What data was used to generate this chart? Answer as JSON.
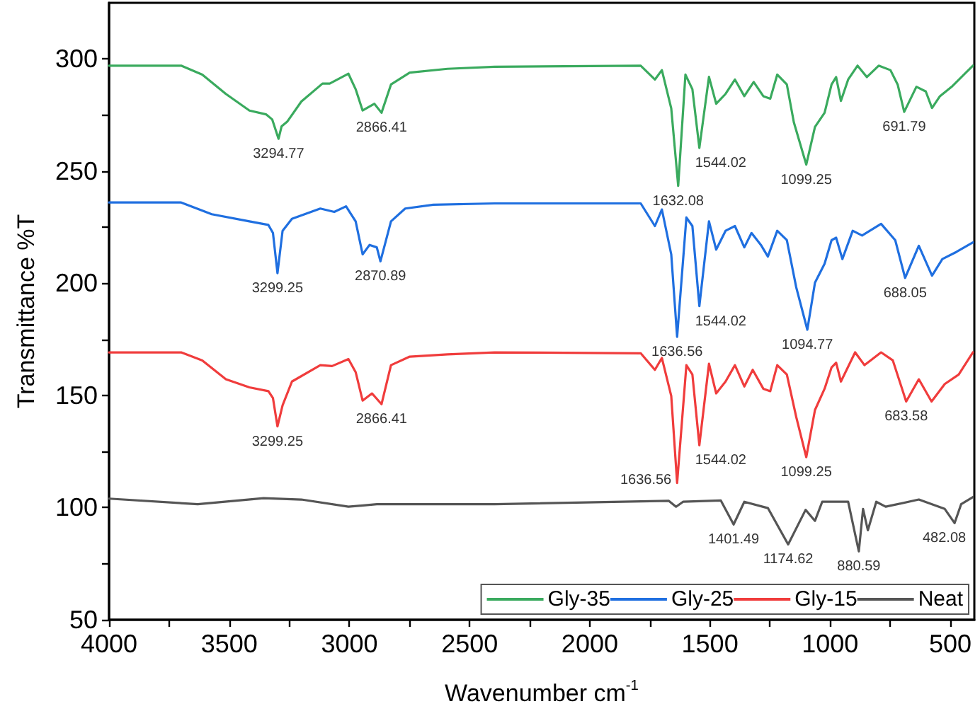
{
  "chart_data": {
    "type": "line",
    "xlabel": "Wavenumber cm$^{-1}$",
    "ylabel": "Transmittance %T",
    "xlim": [
      4000,
      400
    ],
    "ylim": [
      50,
      325
    ],
    "xticks": [
      4000,
      {
        "value": 3750,
        "label": null
      },
      3500,
      {
        "value": 3250,
        "label": null
      },
      3000,
      {
        "value": 2750,
        "label": null
      },
      2500,
      {
        "value": 2250,
        "label": null
      },
      2000,
      {
        "value": 1750,
        "label": null
      },
      1500,
      {
        "value": 1250,
        "label": null
      },
      1000,
      {
        "value": 750,
        "label": null
      },
      500
    ],
    "yticks": [
      50,
      {
        "value": 75,
        "label": null
      },
      100,
      {
        "value": 125,
        "label": null
      },
      150,
      {
        "value": 175,
        "label": null
      },
      200,
      {
        "value": 225,
        "label": null
      },
      250,
      {
        "value": 275,
        "label": null
      },
      300
    ],
    "grid": false,
    "legend": "bottom right",
    "marker": "none",
    "line_style": "solid",
    "series": [
      {
        "name": "Gly-35",
        "color": "#3aaa5e",
        "x": [
          4000,
          3700,
          3612,
          3514,
          3416,
          3347,
          3321,
          3294.77,
          3282,
          3259,
          3200,
          3112,
          3082,
          3004,
          2974,
          2945,
          2896,
          2866.41,
          2827,
          2749,
          2592,
          2396,
          1788,
          1729,
          1700,
          1661,
          1632.08,
          1602,
          1573,
          1544.02,
          1504,
          1474,
          1435,
          1396,
          1357,
          1318,
          1278,
          1249,
          1220,
          1180,
          1151,
          1099.25,
          1063,
          1023,
          994,
          975,
          955,
          925,
          886,
          847,
          798,
          749,
          719,
          691.79,
          641,
          602,
          576,
          543,
          494,
          435,
          406
        ],
        "values": [
          297,
          297,
          293,
          284.4,
          277,
          275.3,
          273,
          264.4,
          270,
          272,
          281,
          289,
          289,
          293.4,
          286.5,
          277,
          280,
          276,
          288.6,
          293.9,
          295.6,
          296.5,
          297,
          290.8,
          295,
          278,
          243.4,
          293,
          286.5,
          260.3,
          292,
          280,
          284.4,
          290.8,
          283.4,
          289.7,
          283.4,
          282.3,
          293,
          288.6,
          271.8,
          252.9,
          269.7,
          276,
          288.6,
          291.9,
          281.3,
          290.8,
          297,
          291.9,
          297,
          295,
          288.6,
          276.4,
          287.6,
          285.5,
          278.1,
          283.4,
          287.6,
          293.9,
          297
        ]
      },
      {
        "name": "Gly-25",
        "color": "#1f6fe0",
        "x": [
          4000,
          3700,
          3573,
          3416,
          3337,
          3318,
          3299.25,
          3278,
          3239,
          3121,
          3063,
          3014,
          2974,
          2945,
          2916,
          2886,
          2870.89,
          2827,
          2768,
          2651,
          2396,
          1788,
          1729,
          1700,
          1661,
          1636.56,
          1598,
          1573,
          1544.02,
          1504,
          1474,
          1435,
          1396,
          1357,
          1327,
          1288,
          1259,
          1220,
          1180,
          1141,
          1094.77,
          1063,
          1023,
          994,
          975,
          949,
          906,
          867,
          788,
          729,
          688.05,
          631,
          576,
          533,
          474,
          406
        ],
        "values": [
          236,
          236,
          230.8,
          227.6,
          226,
          222.4,
          204.5,
          223.4,
          228.7,
          233.3,
          231.8,
          234.3,
          227.6,
          212.9,
          217.1,
          216,
          209.8,
          227.6,
          233.3,
          235,
          235.6,
          235.6,
          225.5,
          232.9,
          212.9,
          176.1,
          229.3,
          225.5,
          189.8,
          227.6,
          215,
          223.4,
          225.5,
          216,
          222.4,
          217.1,
          211.9,
          223.4,
          219.2,
          198.2,
          179.3,
          200.3,
          208.7,
          219.2,
          220.3,
          210.8,
          223.4,
          221.3,
          226.5,
          219.2,
          202.4,
          216.7,
          203.4,
          210.8,
          214,
          218.2
        ]
      },
      {
        "name": "Gly-15",
        "color": "#f03c3c",
        "x": [
          4000,
          3700,
          3612,
          3514,
          3416,
          3337,
          3318,
          3299.25,
          3278,
          3239,
          3121,
          3072,
          3004,
          2974,
          2945,
          2906,
          2866.41,
          2827,
          2749,
          2592,
          2396,
          1788,
          1729,
          1700,
          1661,
          1636.56,
          1598,
          1573,
          1544.02,
          1504,
          1474,
          1435,
          1396,
          1357,
          1322,
          1278,
          1249,
          1220,
          1180,
          1141,
          1099.25,
          1063,
          1023,
          994,
          975,
          955,
          896,
          857,
          788,
          739,
          683.58,
          631,
          578,
          523,
          465,
          406
        ],
        "values": [
          169.2,
          169.2,
          165.6,
          157.2,
          153.6,
          151.9,
          148.8,
          136.2,
          145.6,
          156.2,
          163.5,
          163.1,
          166.2,
          160.4,
          147.7,
          150.9,
          146.1,
          163.5,
          167.3,
          168.3,
          169.2,
          168.8,
          161.4,
          166.7,
          149.8,
          111,
          163.5,
          159.3,
          127.8,
          164.1,
          150.9,
          156.2,
          163.5,
          154,
          161.4,
          153,
          151.9,
          163.5,
          159.3,
          140.4,
          122.5,
          143.5,
          153,
          162.5,
          164.6,
          156.2,
          169.2,
          163.5,
          169.2,
          165.6,
          147.3,
          157.2,
          147.3,
          155.1,
          159.3,
          169.2
        ]
      },
      {
        "name": "Neat",
        "color": "#555555",
        "x": [
          4000,
          3631,
          3357,
          3200,
          3004,
          2886,
          2396,
          1671,
          1641,
          1612,
          1455,
          1401.49,
          1357,
          1259,
          1174.62,
          1102,
          1063,
          1033,
          925,
          880.59,
          863,
          843,
          808,
          769,
          631,
          523,
          482.08,
          455,
          406
        ],
        "values": [
          104,
          101.5,
          104.2,
          103.6,
          100.4,
          101.5,
          101.5,
          103,
          100.4,
          102.6,
          103.2,
          92.5,
          102.6,
          99.8,
          83.6,
          99,
          94.1,
          102.6,
          102.6,
          80.5,
          99.4,
          89.9,
          102.6,
          100.4,
          103.6,
          99.4,
          93.1,
          101.5,
          104.7
        ]
      }
    ],
    "annotations": [
      {
        "text": "3294.77",
        "x": 3294.77,
        "y": 264.4
      },
      {
        "text": "2866.41",
        "x": 2866.41,
        "y": 276
      },
      {
        "text": "1632.08",
        "x": 1632.08,
        "y": 243.4
      },
      {
        "text": "1544.02",
        "x": 1544.02,
        "y": 260.3
      },
      {
        "text": "1099.25",
        "x": 1099.25,
        "y": 252.9
      },
      {
        "text": "691.79",
        "x": 691.79,
        "y": 276.4
      },
      {
        "text": "3299.25",
        "x": 3299.25,
        "y": 204.5
      },
      {
        "text": "2870.89",
        "x": 2870.89,
        "y": 209.8
      },
      {
        "text": "1636.56",
        "x": 1636.56,
        "y": 176.1
      },
      {
        "text": "1544.02",
        "x": 1544.02,
        "y": 189.8
      },
      {
        "text": "1094.77",
        "x": 1094.77,
        "y": 179.3
      },
      {
        "text": "688.05",
        "x": 688.05,
        "y": 202.4
      },
      {
        "text": "3299.25",
        "x": 3299.25,
        "y": 136.2
      },
      {
        "text": "2866.41",
        "x": 2866.41,
        "y": 146.1
      },
      {
        "text": "1636.56",
        "x": 1636.56,
        "y": 111
      },
      {
        "text": "1544.02",
        "x": 1544.02,
        "y": 127.8
      },
      {
        "text": "1099.25",
        "x": 1099.25,
        "y": 122.5
      },
      {
        "text": "683.58",
        "x": 683.58,
        "y": 147.3
      },
      {
        "text": "1401.49",
        "x": 1401.49,
        "y": 92.5
      },
      {
        "text": "1174.62",
        "x": 1174.62,
        "y": 83.6
      },
      {
        "text": "880.59",
        "x": 880.59,
        "y": 80.5
      },
      {
        "text": "482.08",
        "x": 482.08,
        "y": 93.1
      }
    ]
  }
}
